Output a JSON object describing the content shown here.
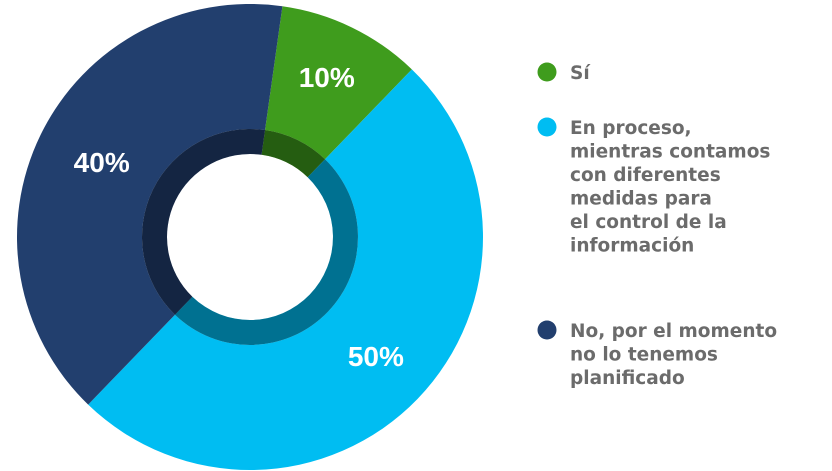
{
  "chart_data": {
    "type": "donut",
    "categories": [
      "Sí",
      "En proceso,\nmientras contamos\ncon diferentes\nmedidas para\nel control de la\ninformación",
      "No, por el momento\nno lo tenemos\nplanificado"
    ],
    "values": [
      10,
      50,
      40
    ],
    "value_labels": [
      "10%",
      "50%",
      "40%"
    ],
    "colors": [
      "#3f9c1d",
      "#00bdf2",
      "#223f6e"
    ]
  }
}
